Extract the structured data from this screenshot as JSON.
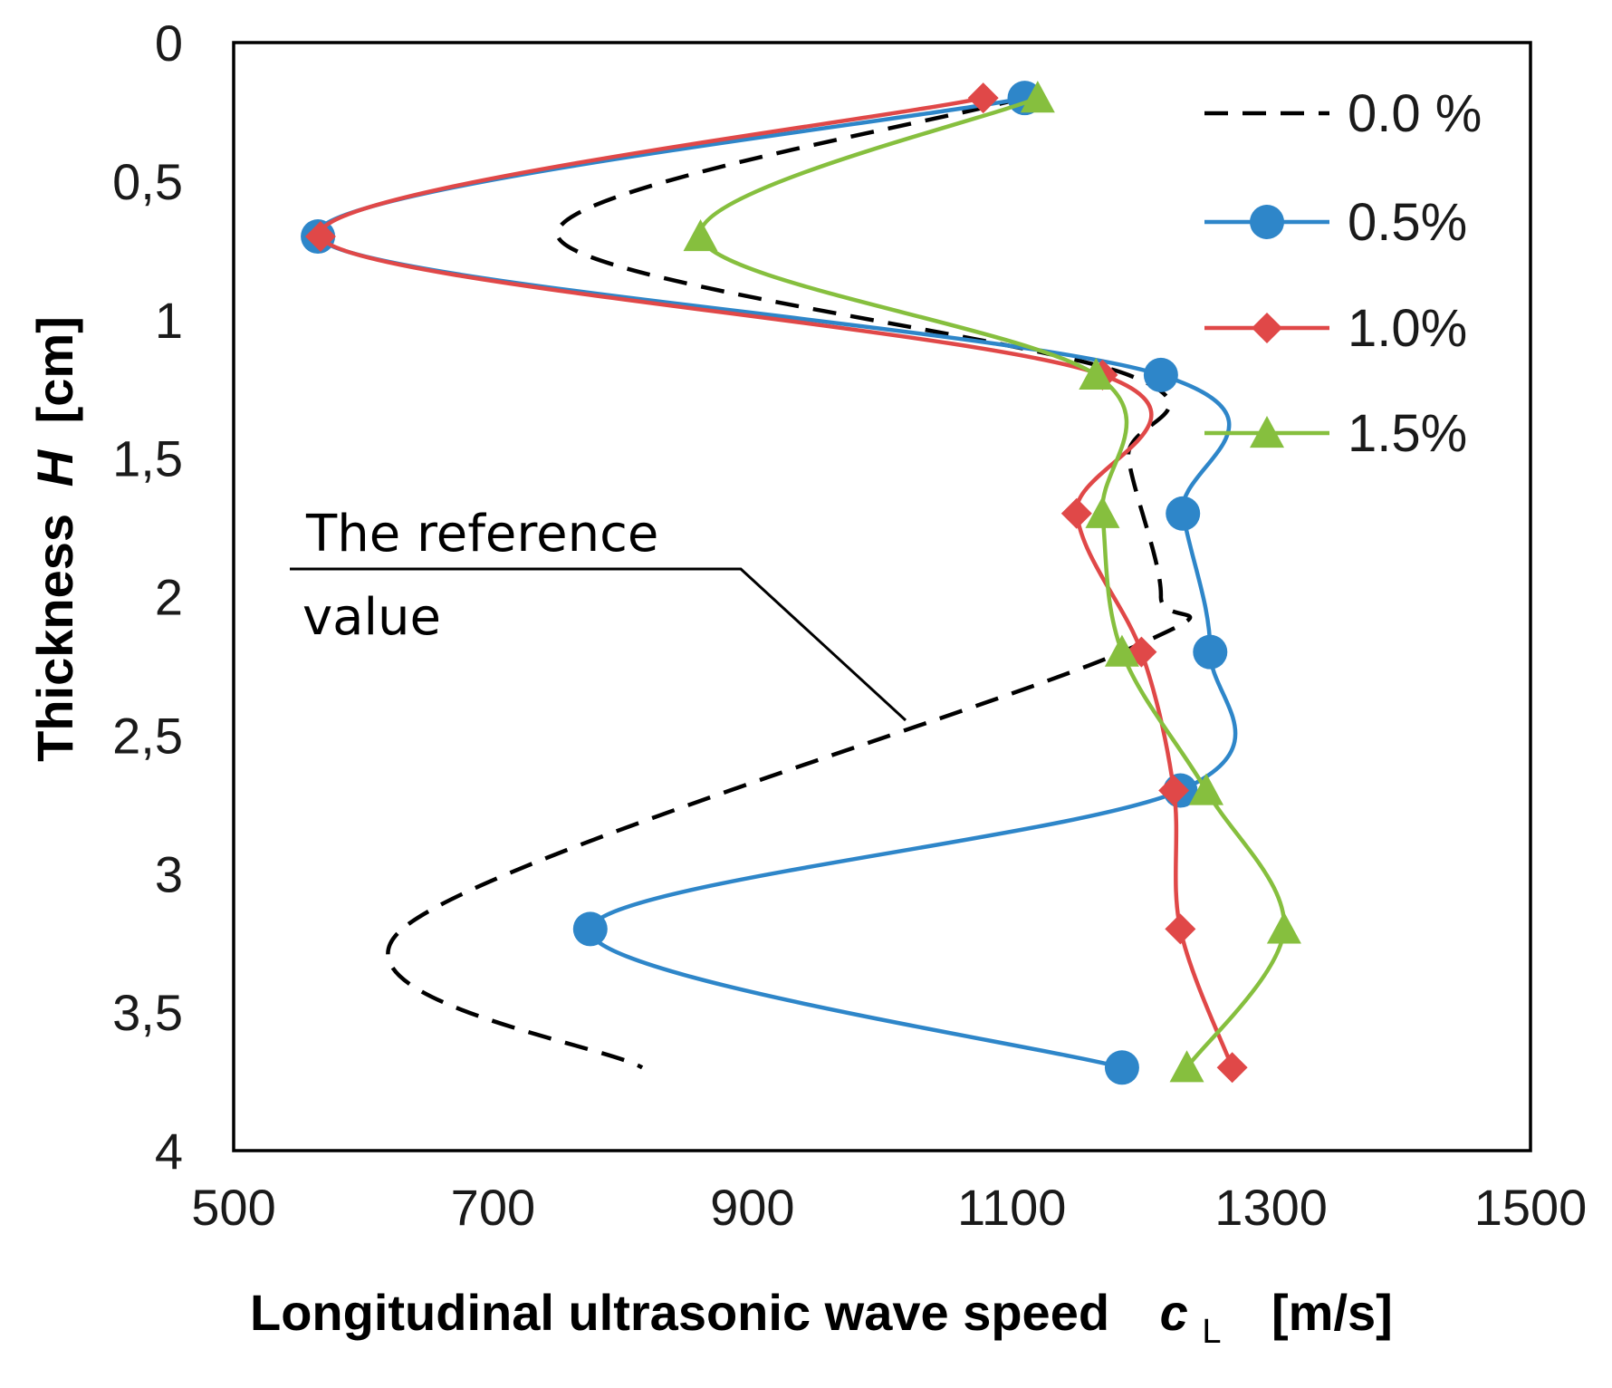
{
  "chart_data": {
    "type": "line",
    "title": "",
    "xlabel": "Longitudinal ultrasonic wave speed",
    "xlabel_symbol": "c",
    "xlabel_subscript": "L",
    "xlabel_unit": "[m/s]",
    "ylabel": "Thickness",
    "ylabel_symbol": "H",
    "ylabel_unit": "[cm]",
    "xlim": [
      500,
      1500
    ],
    "ylim": [
      0,
      4
    ],
    "y_inverted": true,
    "x_ticks": [
      "500",
      "700",
      "900",
      "1100",
      "1300",
      "1500"
    ],
    "x_tick_values": [
      500,
      700,
      900,
      1100,
      1300,
      1500
    ],
    "y_ticks": [
      "0",
      "0,5",
      "1",
      "1,5",
      "2",
      "2,5",
      "3",
      "3,5",
      "4"
    ],
    "y_tick_values": [
      0,
      0.5,
      1,
      1.5,
      2,
      2.5,
      3,
      3.5,
      4
    ],
    "grid": false,
    "legend_position": "top-right",
    "series": [
      {
        "name": "0.0 %",
        "color": "#000000",
        "style": "dashed",
        "marker": "none",
        "points": [
          [
            1108,
            0.2
          ],
          [
            750,
            0.7
          ],
          [
            1190,
            1.2
          ],
          [
            1190,
            1.5
          ],
          [
            1215,
            2.0
          ],
          [
            1185,
            2.2
          ],
          [
            630,
            3.2
          ],
          [
            815,
            3.7
          ]
        ]
      },
      {
        "name": "0.5%",
        "color": "#2E86C9",
        "style": "solid",
        "marker": "circle",
        "points": [
          [
            1110,
            0.2
          ],
          [
            565,
            0.7
          ],
          [
            1215,
            1.2
          ],
          [
            1232,
            1.7
          ],
          [
            1253,
            2.2
          ],
          [
            1230,
            2.7
          ],
          [
            775,
            3.2
          ],
          [
            1185,
            3.7
          ]
        ]
      },
      {
        "name": "1.0%",
        "color": "#E04848",
        "style": "solid",
        "marker": "diamond",
        "points": [
          [
            1078,
            0.2
          ],
          [
            567,
            0.7
          ],
          [
            1170,
            1.2
          ],
          [
            1150,
            1.7
          ],
          [
            1200,
            2.2
          ],
          [
            1225,
            2.7
          ],
          [
            1230,
            3.2
          ],
          [
            1270,
            3.7
          ]
        ]
      },
      {
        "name": "1.5%",
        "color": "#86BF3E",
        "style": "solid",
        "marker": "triangle",
        "points": [
          [
            1120,
            0.2
          ],
          [
            860,
            0.7
          ],
          [
            1165,
            1.2
          ],
          [
            1170,
            1.7
          ],
          [
            1185,
            2.2
          ],
          [
            1250,
            2.7
          ],
          [
            1310,
            3.2
          ],
          [
            1235,
            3.7
          ]
        ]
      }
    ],
    "annotations": [
      {
        "lines": [
          "The reference",
          "value"
        ]
      }
    ]
  }
}
